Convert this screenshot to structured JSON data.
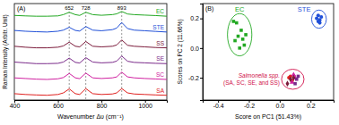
{
  "chart_data": [
    {
      "type": "line",
      "title": "(A)",
      "xlabel": "Wavenumber Δυ (cm⁻¹)",
      "ylabel": "Raman Intensity (Arbitr. Unit)",
      "x": [
        400,
        450,
        500,
        550,
        600,
        625,
        652,
        680,
        700,
        728,
        760,
        800,
        850,
        870,
        893,
        920,
        950,
        1000,
        1050,
        1100
      ],
      "xlim": [
        400,
        1100
      ],
      "xticks": [
        400,
        600,
        800,
        1000
      ],
      "ylim": [
        0.9,
        7.0
      ],
      "tick_labels": "x",
      "annotations": [
        {
          "x": 652,
          "text": "652"
        },
        {
          "x": 728,
          "text": "728"
        },
        {
          "x": 893,
          "text": "893"
        }
      ],
      "series": [
        {
          "name": "EC",
          "color": "#22a822",
          "values": [
            6.25,
            6.22,
            6.2,
            6.2,
            6.22,
            6.3,
            6.45,
            6.3,
            6.25,
            6.45,
            6.3,
            6.26,
            6.3,
            6.35,
            6.5,
            6.34,
            6.3,
            6.27,
            6.24,
            6.2
          ]
        },
        {
          "name": "STE",
          "color": "#1f4fd8",
          "values": [
            5.3,
            5.25,
            5.22,
            5.2,
            5.25,
            5.32,
            5.5,
            5.3,
            5.26,
            5.55,
            5.32,
            5.28,
            5.35,
            5.45,
            5.8,
            5.42,
            5.32,
            5.28,
            5.24,
            5.2
          ]
        },
        {
          "name": "SS",
          "color": "#7b1a3a",
          "values": [
            4.3,
            4.24,
            4.2,
            4.2,
            4.24,
            4.32,
            4.56,
            4.3,
            4.26,
            4.6,
            4.3,
            4.26,
            4.3,
            4.38,
            4.7,
            4.36,
            4.3,
            4.26,
            4.22,
            4.2
          ]
        },
        {
          "name": "SE",
          "color": "#7a2a8a",
          "values": [
            3.3,
            3.25,
            3.2,
            3.2,
            3.22,
            3.3,
            3.55,
            3.28,
            3.24,
            3.58,
            3.3,
            3.25,
            3.28,
            3.36,
            3.68,
            3.35,
            3.28,
            3.25,
            3.22,
            3.2
          ]
        },
        {
          "name": "SC",
          "color": "#d020a0",
          "values": [
            2.3,
            2.26,
            2.22,
            2.2,
            2.24,
            2.32,
            2.58,
            2.3,
            2.25,
            2.6,
            2.3,
            2.26,
            2.3,
            2.36,
            2.66,
            2.36,
            2.3,
            2.26,
            2.23,
            2.2
          ]
        },
        {
          "name": "SA",
          "color": "#e0201e",
          "values": [
            1.3,
            1.25,
            1.22,
            1.2,
            1.25,
            1.35,
            1.6,
            1.3,
            1.25,
            1.62,
            1.3,
            1.25,
            1.28,
            1.35,
            1.62,
            1.35,
            1.28,
            1.25,
            1.22,
            1.2
          ]
        }
      ]
    },
    {
      "type": "scatter",
      "title": "(B)",
      "xlabel": "Score on PC1 (51.43%)",
      "ylabel": "Scores on PC 2 (11.66%)",
      "xlim": [
        -0.5,
        0.35
      ],
      "xticks": [
        -0.4,
        -0.2,
        {
          "value": 0,
          "label": "0.0"
        },
        0.2
      ],
      "ylim": [
        -0.35,
        0.3
      ],
      "yticks": [
        -0.2,
        {
          "value": 0,
          "label": "0.0"
        },
        0.2
      ],
      "groups": [
        {
          "label": [
            "EC"
          ],
          "color": "#22a822",
          "series": [
            {
              "color": "#22a822",
              "marker": "square",
              "x": [
                -0.3,
                -0.28,
                -0.27,
                -0.25,
                -0.24,
                -0.26,
                -0.23,
                -0.29,
                -0.22
              ],
              "y": [
                0.18,
                0.17,
                0.08,
                0.12,
                0.06,
                0.0,
                0.02,
                0.05,
                0.09
              ]
            }
          ]
        },
        {
          "label": [
            "STE"
          ],
          "color": "#1f4fd8",
          "series": [
            {
              "color": "#1f4fd8",
              "marker": "circle",
              "x": [
                0.24,
                0.25,
                0.26,
                0.27,
                0.25,
                0.26
              ],
              "y": [
                0.2,
                0.22,
                0.19,
                0.21,
                0.18,
                0.17
              ]
            }
          ]
        },
        {
          "label": [
            "Salmonella spp.",
            "(SA, SC, SE, and SS)"
          ],
          "color": "#d0104a",
          "series": [
            {
              "color": "#e0201e",
              "marker": "circle",
              "x": [
                0.06,
                0.08,
                0.07
              ],
              "y": [
                -0.2,
                -0.22,
                -0.19
              ]
            },
            {
              "color": "#d020a0",
              "marker": "triangle",
              "x": [
                0.09,
                0.1,
                0.08
              ],
              "y": [
                -0.18,
                -0.2,
                -0.23
              ]
            },
            {
              "color": "#7a2a8a",
              "marker": "square",
              "x": [
                0.11,
                0.12,
                0.1
              ],
              "y": [
                -0.21,
                -0.19,
                -0.24
              ]
            },
            {
              "color": "#7b1a3a",
              "marker": "diamond",
              "x": [
                0.05,
                0.07,
                0.09
              ],
              "y": [
                -0.24,
                -0.21,
                -0.2
              ]
            }
          ]
        }
      ]
    }
  ]
}
